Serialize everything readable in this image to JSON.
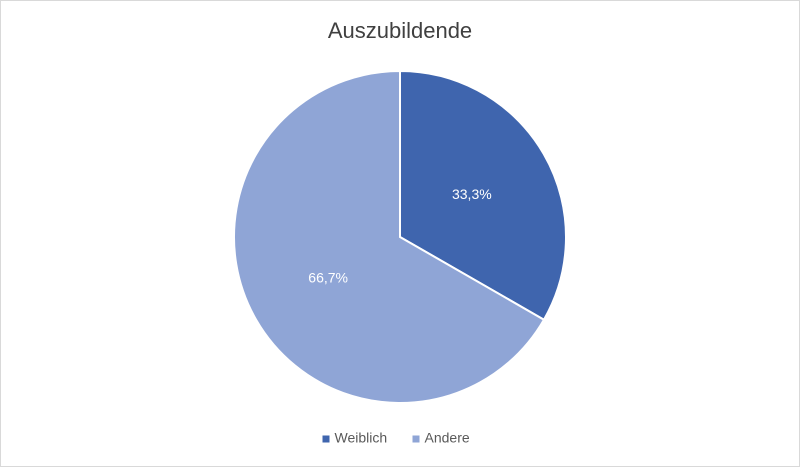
{
  "chart_data": {
    "type": "pie",
    "title": "Auszubildende",
    "categories": [
      "Weiblich",
      "Andere"
    ],
    "values": [
      33.3,
      66.7
    ],
    "value_labels": [
      "33,3%",
      "66,7%"
    ],
    "colors": [
      "#3f65ae",
      "#8fa5d6"
    ],
    "legend": "bottom"
  }
}
